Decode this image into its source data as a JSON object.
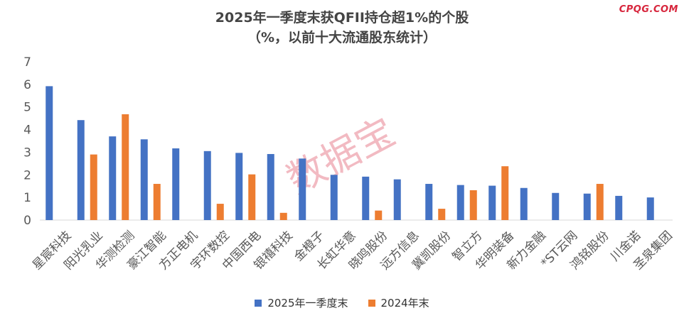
{
  "watermark_brand": "CPQG.COM",
  "watermark_text": "数据宝",
  "chart_data": {
    "type": "bar",
    "title_line1": "2025年一季度末获QFII持仓超1%的个股",
    "title_line2": "（%，以前十大流通股东统计）",
    "xlabel": "",
    "ylabel": "",
    "ylim": [
      0,
      7
    ],
    "yticks": [
      "0",
      "1",
      "2",
      "3",
      "4",
      "5",
      "6",
      "7"
    ],
    "grid": false,
    "legend_position": "bottom",
    "categories": [
      "星宸科技",
      "阳光乳业",
      "华测检测",
      "豪江智能",
      "方正电机",
      "宇环数控",
      "中国西电",
      "银禧科技",
      "金橙子",
      "长虹华意",
      "晓鸣股份",
      "远方信息",
      "冀凯股份",
      "智立方",
      "华明装备",
      "新力金融",
      "*ST云网",
      "鸿铭股份",
      "川金诺",
      "圣泉集团"
    ],
    "series": [
      {
        "name": "2025年一季度末",
        "color": "#4472C4",
        "values": [
          5.92,
          4.42,
          3.7,
          3.57,
          3.17,
          3.05,
          2.97,
          2.92,
          2.72,
          2.0,
          1.92,
          1.8,
          1.6,
          1.55,
          1.52,
          1.42,
          1.2,
          1.17,
          1.07,
          1.0
        ]
      },
      {
        "name": "2024年末",
        "color": "#ED7D31",
        "values": [
          null,
          2.9,
          4.68,
          1.6,
          null,
          0.72,
          2.02,
          0.32,
          null,
          null,
          0.42,
          null,
          0.5,
          1.32,
          2.38,
          null,
          null,
          1.6,
          null,
          null
        ]
      }
    ]
  }
}
